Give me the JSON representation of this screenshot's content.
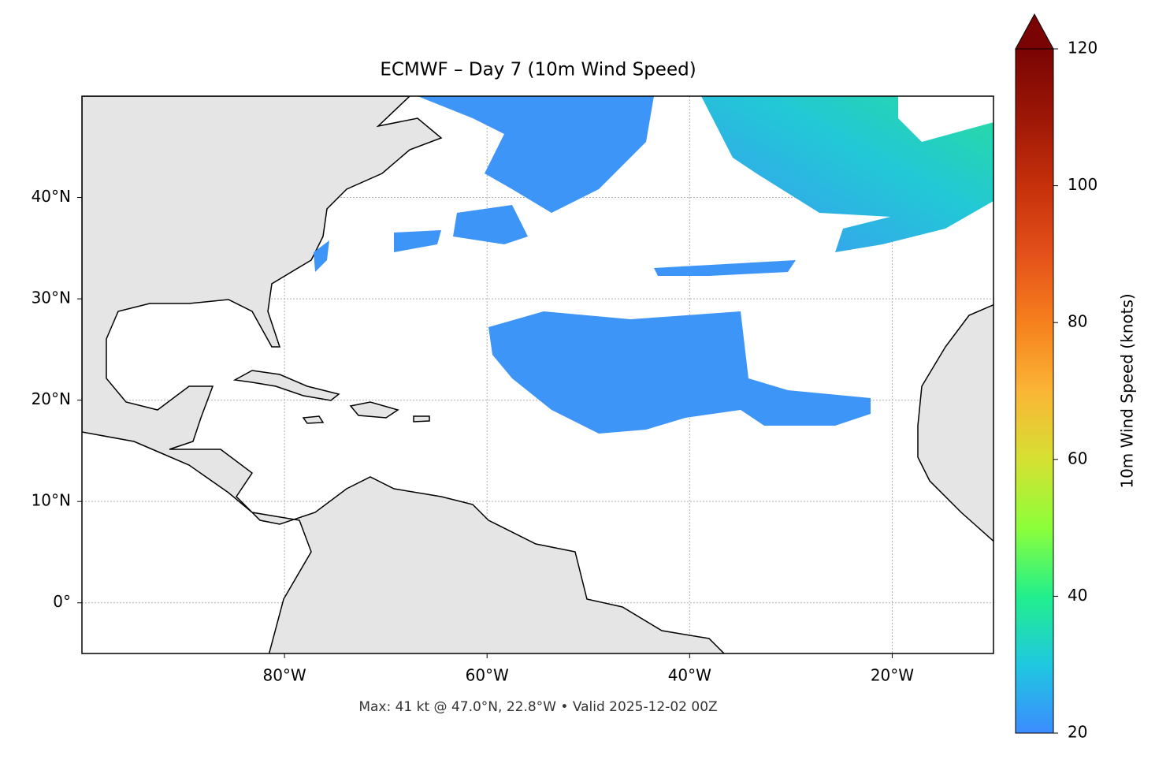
{
  "map": {
    "title": "ECMWF – Day 7 (10m Wind Speed)",
    "footer": "Max: 41 kt @ 47.0°N, 22.8°W • Valid 2025-12-02 00Z",
    "xlim": [
      -100,
      -10
    ],
    "ylim": [
      -5,
      50
    ],
    "xticks": [
      {
        "value": -80,
        "label": "80°W"
      },
      {
        "value": -60,
        "label": "60°W"
      },
      {
        "value": -40,
        "label": "40°W"
      },
      {
        "value": -20,
        "label": "20°W"
      }
    ],
    "yticks": [
      {
        "value": 0,
        "label": "0°"
      },
      {
        "value": 10,
        "label": "10°N"
      },
      {
        "value": 20,
        "label": "20°N"
      },
      {
        "value": 30,
        "label": "30°N"
      },
      {
        "value": 40,
        "label": "40°N"
      }
    ],
    "grid": true,
    "colorbar": {
      "label": "10m Wind Speed (knots)",
      "lim": [
        20,
        120
      ],
      "ticks": [
        20,
        40,
        60,
        80,
        100,
        120
      ]
    }
  }
}
